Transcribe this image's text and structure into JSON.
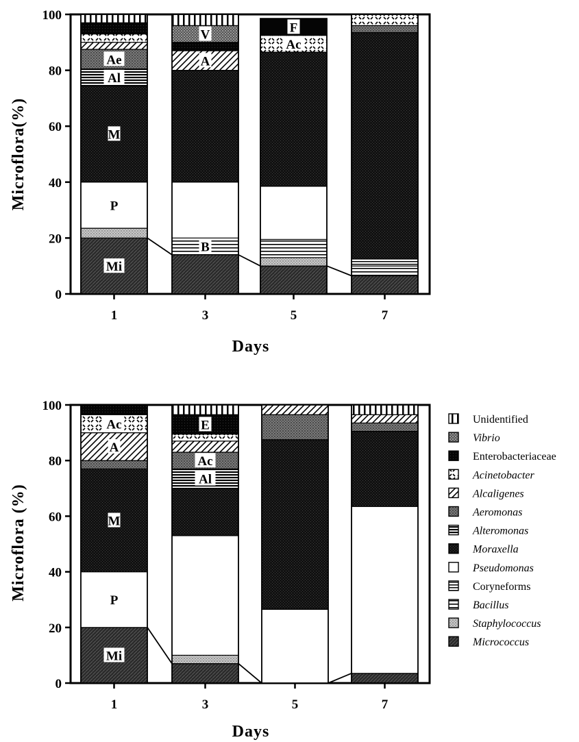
{
  "chart_data": [
    {
      "type": "bar",
      "stacked": true,
      "ylabel": "Microflora(%)",
      "xlabel": "Days",
      "ylim": [
        0,
        100
      ],
      "yticks": [
        0,
        20,
        40,
        60,
        80,
        100
      ],
      "categories": [
        "1",
        "3",
        "5",
        "7"
      ],
      "series": [
        {
          "name": "Micrococcus",
          "values": [
            20,
            14,
            10,
            6.5
          ]
        },
        {
          "name": "Staphylococcus",
          "values": [
            3.5,
            0,
            3,
            0
          ]
        },
        {
          "name": "Bacillus",
          "values": [
            0,
            6,
            6.5,
            3.5
          ]
        },
        {
          "name": "Coryneforms",
          "values": [
            0,
            0,
            0,
            2.5
          ]
        },
        {
          "name": "Pseudomonas",
          "values": [
            16.5,
            20,
            19,
            0
          ]
        },
        {
          "name": "Moraxella",
          "values": [
            34.5,
            40,
            48,
            81
          ]
        },
        {
          "name": "Alteromonas",
          "values": [
            6,
            0,
            0,
            0
          ]
        },
        {
          "name": "Aeromonas",
          "values": [
            7,
            0,
            0,
            2.5
          ]
        },
        {
          "name": "Alcaligenes",
          "values": [
            2.5,
            7,
            0,
            0
          ]
        },
        {
          "name": "Acinetobacter",
          "values": [
            3,
            0,
            6,
            4
          ]
        },
        {
          "name": "Enterobacteriaceae",
          "values": [
            4,
            3,
            0,
            0
          ]
        },
        {
          "name": "Vibrio",
          "values": [
            0,
            6,
            0,
            0
          ]
        },
        {
          "name": "Unidentified",
          "values": [
            3,
            4,
            0,
            0
          ]
        },
        {
          "name": "Enterobacteriaceae_F",
          "values": [
            0,
            0,
            6,
            0
          ]
        }
      ],
      "segment_labels": [
        {
          "category": "1",
          "series": "Micrococcus",
          "text": "Mi"
        },
        {
          "category": "1",
          "series": "Pseudomonas",
          "text": "P"
        },
        {
          "category": "1",
          "series": "Moraxella",
          "text": "M"
        },
        {
          "category": "1",
          "series": "Alteromonas",
          "text": "Al"
        },
        {
          "category": "1",
          "series": "Aeromonas",
          "text": "Ae"
        },
        {
          "category": "3",
          "series": "Bacillus",
          "text": "B"
        },
        {
          "category": "3",
          "series": "Alcaligenes",
          "text": "A"
        },
        {
          "category": "3",
          "series": "Vibrio",
          "text": "V"
        },
        {
          "category": "5",
          "series": "Acinetobacter",
          "text": "Ac"
        },
        {
          "category": "5",
          "series": "Enterobacteriaceae_F",
          "text": "F"
        }
      ]
    },
    {
      "type": "bar",
      "stacked": true,
      "ylabel": "Microflora (%)",
      "xlabel": "Days",
      "ylim": [
        0,
        100
      ],
      "yticks": [
        0,
        20,
        40,
        60,
        80,
        100
      ],
      "categories": [
        "1",
        "3",
        "5",
        "7"
      ],
      "series": [
        {
          "name": "Micrococcus",
          "values": [
            20,
            7,
            0,
            3.5
          ]
        },
        {
          "name": "Staphylococcus",
          "values": [
            0,
            3,
            0,
            0
          ]
        },
        {
          "name": "Pseudomonas",
          "values": [
            20,
            43,
            26.5,
            60
          ]
        },
        {
          "name": "Moraxella",
          "values": [
            37,
            17,
            61,
            27
          ]
        },
        {
          "name": "Alteromonas",
          "values": [
            0,
            7,
            0,
            0
          ]
        },
        {
          "name": "Aeromonas",
          "values": [
            3,
            6,
            9,
            3
          ]
        },
        {
          "name": "Alcaligenes",
          "values": [
            10,
            4,
            3.5,
            3
          ]
        },
        {
          "name": "Acinetobacter",
          "values": [
            6.5,
            2.5,
            0,
            0
          ]
        },
        {
          "name": "Enterobacteriaceae",
          "values": [
            3.5,
            7,
            0,
            0
          ]
        },
        {
          "name": "Unidentified",
          "values": [
            0,
            3.5,
            0,
            3.5
          ]
        }
      ],
      "segment_labels": [
        {
          "category": "1",
          "series": "Micrococcus",
          "text": "Mi"
        },
        {
          "category": "1",
          "series": "Pseudomonas",
          "text": "P"
        },
        {
          "category": "1",
          "series": "Moraxella",
          "text": "M"
        },
        {
          "category": "1",
          "series": "Alcaligenes",
          "text": "A"
        },
        {
          "category": "1",
          "series": "Acinetobacter",
          "text": "Ac"
        },
        {
          "category": "3",
          "series": "Alteromonas",
          "text": "Al"
        },
        {
          "category": "3",
          "series": "Aeromonas",
          "text": "Ac"
        },
        {
          "category": "3",
          "series": "Enterobacteriaceae",
          "text": "E"
        }
      ],
      "legend": {
        "placement": "right",
        "entries": [
          {
            "name": "Unidentified",
            "italic": false
          },
          {
            "name": "Vibrio",
            "italic": true
          },
          {
            "name": "Enterobacteriaceae",
            "italic": false
          },
          {
            "name": "Acinetobacter",
            "italic": true
          },
          {
            "name": "Alcaligenes",
            "italic": true
          },
          {
            "name": "Aeromonas",
            "italic": true
          },
          {
            "name": "Alteromonas",
            "italic": true
          },
          {
            "name": "Moraxella",
            "italic": true
          },
          {
            "name": "Pseudomonas",
            "italic": true
          },
          {
            "name": "Coryneforms",
            "italic": false
          },
          {
            "name": "Bacillus",
            "italic": true
          },
          {
            "name": "Staphylococcus",
            "italic": true
          },
          {
            "name": "Micrococcus",
            "italic": true
          }
        ]
      }
    }
  ]
}
